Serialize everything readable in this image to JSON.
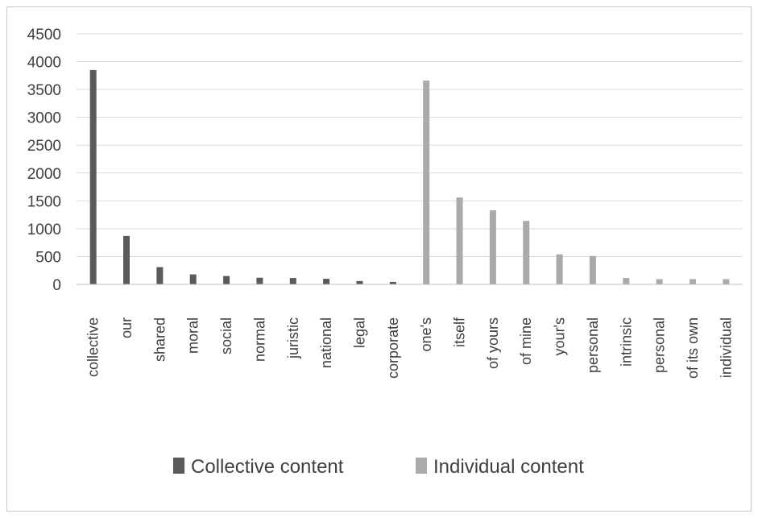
{
  "chart_data": {
    "type": "bar",
    "categories": [
      "collective",
      "our",
      "shared",
      "moral",
      "social",
      "normal",
      "juristic",
      "national",
      "legal",
      "corporate",
      "one's",
      "itself",
      "of yours",
      "of mine",
      "your's",
      "personal",
      "intrinsic",
      "personal",
      "of its own",
      "individual"
    ],
    "series": [
      {
        "name": "Collective content",
        "color": "#5a5a5a",
        "values": [
          3850,
          870,
          310,
          180,
          150,
          120,
          115,
          100,
          60,
          45,
          0,
          0,
          0,
          0,
          0,
          0,
          0,
          0,
          0,
          0
        ]
      },
      {
        "name": "Individual content",
        "color": "#aaaaaa",
        "values": [
          0,
          0,
          0,
          0,
          0,
          0,
          0,
          0,
          0,
          0,
          3660,
          1560,
          1330,
          1140,
          540,
          510,
          115,
          95,
          95,
          95
        ]
      }
    ],
    "ylim": [
      0,
      4500
    ],
    "yticks": [
      0,
      500,
      1000,
      1500,
      2000,
      2500,
      3000,
      3500,
      4000,
      4500
    ],
    "grid": true,
    "legend": "bottom"
  }
}
